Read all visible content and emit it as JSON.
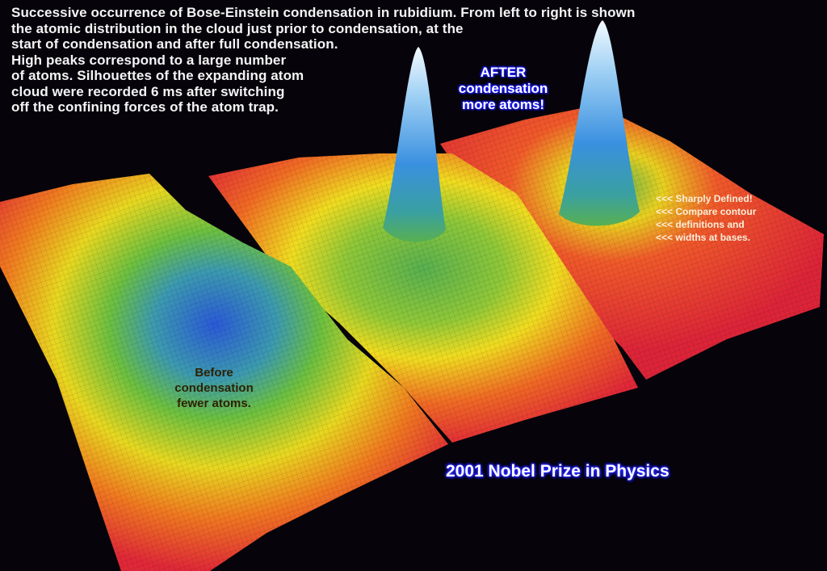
{
  "caption": {
    "lines": [
      "Successive occurrence of Bose-Einstein condensation in rubidium. From left to right is shown",
      "the atomic distribution in the cloud just prior to condensation, at the",
      "start of condensation and after full condensation.",
      "High peaks correspond to a large number",
      "of atoms. Silhouettes of the expanding atom",
      "cloud were recorded 6 ms after switching",
      "off the confining forces of the atom trap."
    ]
  },
  "after_label": {
    "lines": [
      "AFTER",
      "condensation",
      "more atoms!"
    ]
  },
  "before_label": {
    "lines": [
      "Before",
      "condensation",
      "fewer atoms."
    ]
  },
  "notes": {
    "lines": [
      "<<< Sharply Defined!",
      "<<< Compare contour",
      "<<< definitions and",
      "<<< widths at bases."
    ]
  },
  "footer": {
    "text": "2001 Nobel Prize in Physics"
  },
  "colors": {
    "background": "#06040a",
    "low": "#e0283a",
    "mid": "#f0d820",
    "high_green": "#4cb848",
    "peak_blue": "#3a8ae0",
    "peak_tip": "#e8f4ff",
    "label_glow": "#2020ff"
  }
}
